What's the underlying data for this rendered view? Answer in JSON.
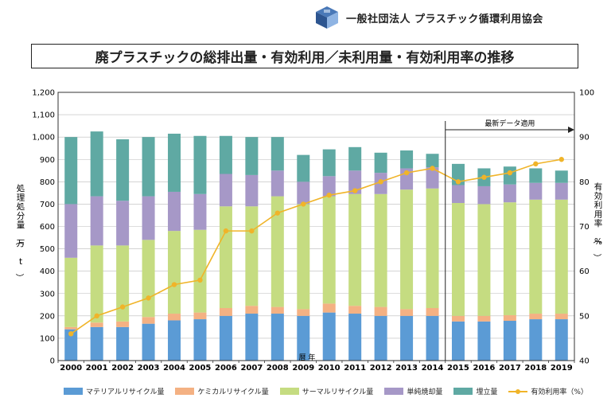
{
  "header": {
    "org": "一般社団法人 プラスチック循環利用協会"
  },
  "chart_data": {
    "type": "bar",
    "title": "廃プラスチックの総排出量・有効利用／未利用量・有効利用率の推移",
    "categories": [
      "2000",
      "2001",
      "2002",
      "2003",
      "2004",
      "2005",
      "2006",
      "2007",
      "2008",
      "2009",
      "2010",
      "2011",
      "2012",
      "2013",
      "2014",
      "2015",
      "2016",
      "2017",
      "2018",
      "2019"
    ],
    "series": [
      {
        "name": "マテリアルリサイクル量",
        "color": "#5b9bd5",
        "values": [
          140,
          150,
          150,
          165,
          180,
          185,
          200,
          210,
          210,
          200,
          215,
          210,
          200,
          200,
          200,
          175,
          175,
          178,
          185,
          185
        ]
      },
      {
        "name": "ケミカルリサイクル量",
        "color": "#f4b183",
        "values": [
          10,
          20,
          25,
          30,
          30,
          30,
          35,
          35,
          30,
          30,
          40,
          35,
          40,
          30,
          35,
          25,
          25,
          25,
          25,
          25
        ]
      },
      {
        "name": "サーマルリサイクル量",
        "color": "#c5dc81",
        "values": [
          310,
          345,
          340,
          345,
          370,
          370,
          455,
          445,
          495,
          470,
          480,
          500,
          505,
          535,
          535,
          505,
          500,
          505,
          510,
          510
        ]
      },
      {
        "name": "単純焼却量",
        "color": "#a698c7",
        "values": [
          240,
          220,
          200,
          195,
          175,
          160,
          145,
          140,
          115,
          100,
          90,
          105,
          95,
          95,
          95,
          80,
          80,
          80,
          75,
          75
        ]
      },
      {
        "name": "埋立量",
        "color": "#5fa9a3",
        "values": [
          300,
          290,
          275,
          265,
          260,
          260,
          170,
          170,
          150,
          120,
          120,
          105,
          90,
          80,
          60,
          95,
          80,
          80,
          65,
          55
        ]
      }
    ],
    "line": {
      "name": "有効利用率（%）",
      "color": "#f0b429",
      "values": [
        46,
        50,
        52,
        54,
        57,
        58,
        69,
        69,
        73,
        75,
        77,
        78,
        80,
        82,
        83,
        80,
        81,
        82,
        84,
        85
      ]
    },
    "ylabel": "処理処分量（万 t）",
    "y2label": "有効利用率（%）",
    "xlabel": "暦 年",
    "ylim": [
      0,
      1200
    ],
    "y2lim": [
      40,
      100
    ],
    "yticks": [
      "0",
      "100",
      "200",
      "300",
      "400",
      "500",
      "600",
      "700",
      "800",
      "900",
      "1,000",
      "1,100",
      "1,200"
    ],
    "y2ticks": [
      "40",
      "50",
      "60",
      "70",
      "80",
      "90",
      "100"
    ],
    "annotation": "最新データ適用",
    "grid": true
  }
}
